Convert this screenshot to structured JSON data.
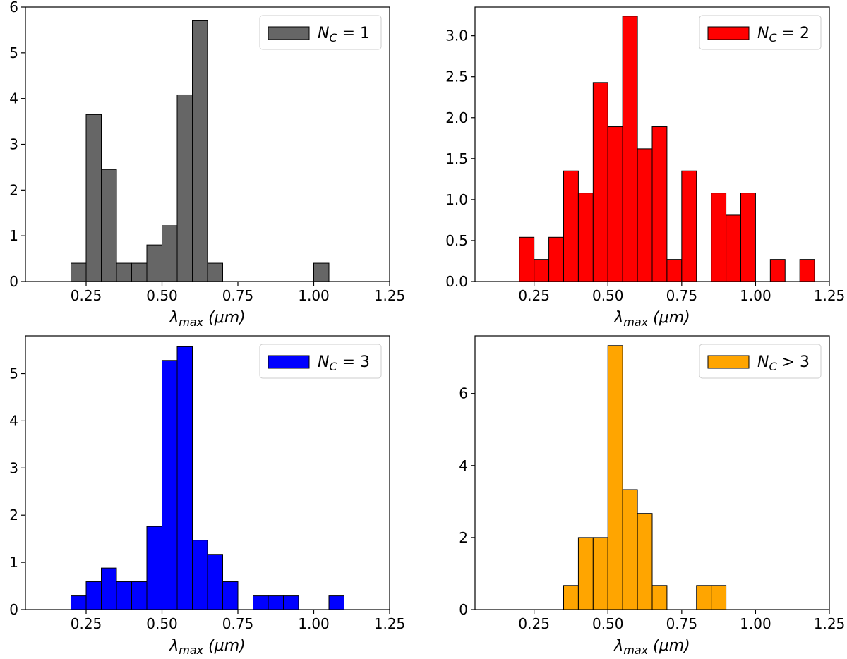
{
  "chart_data": [
    {
      "type": "bar",
      "subtype": "histogram",
      "legend": "N_C = 1",
      "legend_parts": {
        "base": "N",
        "sub": "C",
        "rel": "=",
        "value": "1"
      },
      "legend_position": "top-right",
      "color": "#666666",
      "xlabel": "λ_max (μm)",
      "xlabel_parts": {
        "sym": "λ",
        "sub": "max",
        "unit": "(μm)"
      },
      "xlim": [
        0.05,
        1.25
      ],
      "ylim": [
        0,
        6
      ],
      "bin_width": 0.05,
      "bins": [
        {
          "x": 0.2,
          "y": 0.4
        },
        {
          "x": 0.25,
          "y": 3.65
        },
        {
          "x": 0.3,
          "y": 2.45
        },
        {
          "x": 0.35,
          "y": 0.4
        },
        {
          "x": 0.4,
          "y": 0.4
        },
        {
          "x": 0.45,
          "y": 0.8
        },
        {
          "x": 0.5,
          "y": 1.22
        },
        {
          "x": 0.55,
          "y": 4.08
        },
        {
          "x": 0.6,
          "y": 5.7
        },
        {
          "x": 0.65,
          "y": 0.4
        },
        {
          "x": 1.0,
          "y": 0.4
        }
      ],
      "xticks": [
        "0.25",
        "0.50",
        "0.75",
        "1.00",
        "1.25"
      ],
      "xtick_values": [
        0.25,
        0.5,
        0.75,
        1.0,
        1.25
      ],
      "yticks": [
        "0",
        "1",
        "2",
        "3",
        "4",
        "5",
        "6"
      ],
      "ytick_values": [
        0,
        1,
        2,
        3,
        4,
        5,
        6
      ]
    },
    {
      "type": "bar",
      "subtype": "histogram",
      "legend": "N_C = 2",
      "legend_parts": {
        "base": "N",
        "sub": "C",
        "rel": "=",
        "value": "2"
      },
      "legend_position": "top-right",
      "color": "#ff0000",
      "xlabel": "λ_max (μm)",
      "xlabel_parts": {
        "sym": "λ",
        "sub": "max",
        "unit": "(μm)"
      },
      "xlim": [
        0.05,
        1.25
      ],
      "ylim": [
        0,
        3.35
      ],
      "bin_width": 0.05,
      "bins": [
        {
          "x": 0.2,
          "y": 0.54
        },
        {
          "x": 0.25,
          "y": 0.27
        },
        {
          "x": 0.3,
          "y": 0.54
        },
        {
          "x": 0.35,
          "y": 1.35
        },
        {
          "x": 0.4,
          "y": 1.08
        },
        {
          "x": 0.45,
          "y": 2.43
        },
        {
          "x": 0.5,
          "y": 1.89
        },
        {
          "x": 0.55,
          "y": 3.24
        },
        {
          "x": 0.6,
          "y": 1.62
        },
        {
          "x": 0.65,
          "y": 1.89
        },
        {
          "x": 0.7,
          "y": 0.27
        },
        {
          "x": 0.75,
          "y": 1.35
        },
        {
          "x": 0.85,
          "y": 1.08
        },
        {
          "x": 0.9,
          "y": 0.81
        },
        {
          "x": 0.95,
          "y": 1.08
        },
        {
          "x": 1.05,
          "y": 0.27
        },
        {
          "x": 1.15,
          "y": 0.27
        }
      ],
      "xticks": [
        "0.25",
        "0.50",
        "0.75",
        "1.00",
        "1.25"
      ],
      "xtick_values": [
        0.25,
        0.5,
        0.75,
        1.0,
        1.25
      ],
      "yticks": [
        "0.0",
        "0.5",
        "1.0",
        "1.5",
        "2.0",
        "2.5",
        "3.0"
      ],
      "ytick_values": [
        0,
        0.5,
        1.0,
        1.5,
        2.0,
        2.5,
        3.0
      ]
    },
    {
      "type": "bar",
      "subtype": "histogram",
      "legend": "N_C = 3",
      "legend_parts": {
        "base": "N",
        "sub": "C",
        "rel": "=",
        "value": "3"
      },
      "legend_position": "top-right",
      "color": "#0000ff",
      "xlabel": "λ_max (μm)",
      "xlabel_parts": {
        "sym": "λ",
        "sub": "max",
        "unit": "(μm)"
      },
      "xlim": [
        0.05,
        1.25
      ],
      "ylim": [
        0,
        5.8
      ],
      "bin_width": 0.05,
      "bins": [
        {
          "x": 0.2,
          "y": 0.29
        },
        {
          "x": 0.25,
          "y": 0.59
        },
        {
          "x": 0.3,
          "y": 0.88
        },
        {
          "x": 0.35,
          "y": 0.59
        },
        {
          "x": 0.4,
          "y": 0.59
        },
        {
          "x": 0.45,
          "y": 1.76
        },
        {
          "x": 0.5,
          "y": 5.28
        },
        {
          "x": 0.55,
          "y": 5.57
        },
        {
          "x": 0.6,
          "y": 1.47
        },
        {
          "x": 0.65,
          "y": 1.17
        },
        {
          "x": 0.7,
          "y": 0.59
        },
        {
          "x": 0.8,
          "y": 0.29
        },
        {
          "x": 0.85,
          "y": 0.29
        },
        {
          "x": 0.9,
          "y": 0.29
        },
        {
          "x": 1.05,
          "y": 0.29
        }
      ],
      "xticks": [
        "0.25",
        "0.50",
        "0.75",
        "1.00",
        "1.25"
      ],
      "xtick_values": [
        0.25,
        0.5,
        0.75,
        1.0,
        1.25
      ],
      "yticks": [
        "0",
        "1",
        "2",
        "3",
        "4",
        "5"
      ],
      "ytick_values": [
        0,
        1,
        2,
        3,
        4,
        5
      ]
    },
    {
      "type": "bar",
      "subtype": "histogram",
      "legend": "N_C > 3",
      "legend_parts": {
        "base": "N",
        "sub": "C",
        "rel": ">",
        "value": "3"
      },
      "legend_position": "top-right",
      "color": "#ffa500",
      "xlabel": "λ_max (μm)",
      "xlabel_parts": {
        "sym": "λ",
        "sub": "max",
        "unit": "(μm)"
      },
      "xlim": [
        0.05,
        1.25
      ],
      "ylim": [
        0,
        7.6
      ],
      "bin_width": 0.05,
      "bins": [
        {
          "x": 0.35,
          "y": 0.67
        },
        {
          "x": 0.4,
          "y": 2.0
        },
        {
          "x": 0.45,
          "y": 2.0
        },
        {
          "x": 0.5,
          "y": 7.33
        },
        {
          "x": 0.55,
          "y": 3.33
        },
        {
          "x": 0.6,
          "y": 2.67
        },
        {
          "x": 0.65,
          "y": 0.67
        },
        {
          "x": 0.8,
          "y": 0.67
        },
        {
          "x": 0.85,
          "y": 0.67
        }
      ],
      "xticks": [
        "0.25",
        "0.50",
        "0.75",
        "1.00",
        "1.25"
      ],
      "xtick_values": [
        0.25,
        0.5,
        0.75,
        1.0,
        1.25
      ],
      "yticks": [
        "0",
        "2",
        "4",
        "6"
      ],
      "ytick_values": [
        0,
        2,
        4,
        6
      ]
    }
  ]
}
